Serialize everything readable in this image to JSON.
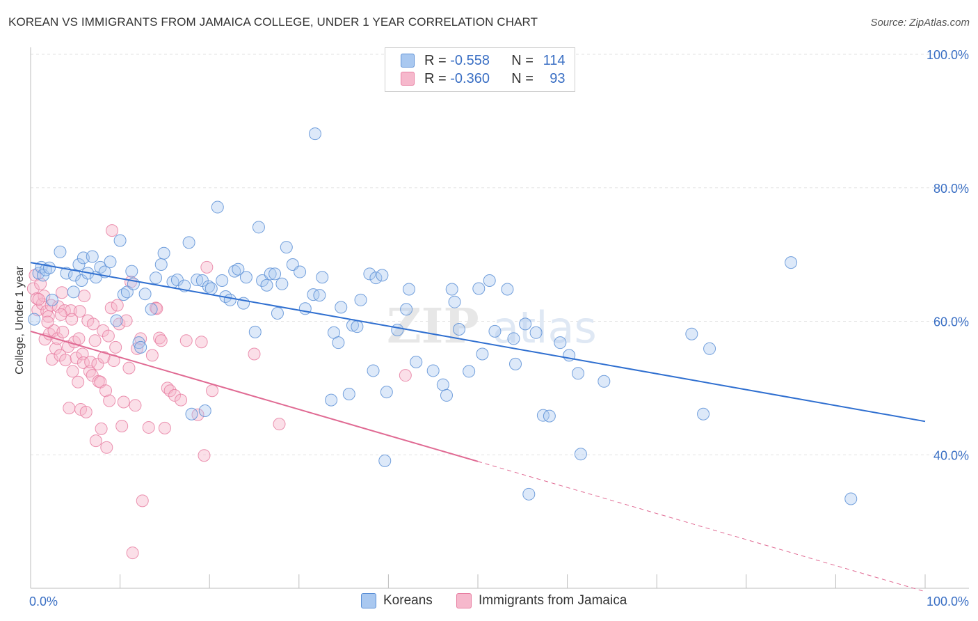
{
  "header": {
    "title": "KOREAN VS IMMIGRANTS FROM JAMAICA COLLEGE, UNDER 1 YEAR CORRELATION CHART",
    "source": "Source: ZipAtlas.com"
  },
  "watermark": {
    "zip": "ZIP",
    "atlas": "atlas"
  },
  "legend": {
    "items": [
      {
        "r_label": "R =",
        "r_value": "-0.558",
        "n_label": "N =",
        "n_value": "114"
      },
      {
        "r_label": "R =",
        "r_value": "-0.360",
        "n_label": "N =",
        "n_value": "93"
      }
    ]
  },
  "colors": {
    "koreans_fill": "#a9c8f0",
    "koreans_stroke": "#5b8fd6",
    "koreans_line": "#2f6fd0",
    "jamaica_fill": "#f6b8cc",
    "jamaica_stroke": "#e87fa2",
    "jamaica_line": "#e06a93",
    "tick_label": "#3a6fc4"
  },
  "chart_data": {
    "type": "scatter",
    "title": "KOREAN VS IMMIGRANTS FROM JAMAICA COLLEGE, UNDER 1 YEAR CORRELATION CHART",
    "xlabel": "",
    "ylabel": "College, Under 1 year",
    "xlim": [
      0,
      100
    ],
    "ylim": [
      20,
      100
    ],
    "x_tick_labels": [
      "0.0%",
      "100.0%"
    ],
    "y_ticks": [
      40,
      60,
      80,
      100
    ],
    "y_tick_labels": [
      "40.0%",
      "60.0%",
      "80.0%",
      "100.0%"
    ],
    "grid": true,
    "legend_position": "top-center",
    "series": [
      {
        "name": "Koreans",
        "r": -0.558,
        "n": 114,
        "trend": {
          "x": [
            0,
            100
          ],
          "y": [
            68.8,
            45.0
          ]
        },
        "points": [
          [
            0.4,
            60.3
          ],
          [
            0.9,
            67.2
          ],
          [
            1.2,
            68.1
          ],
          [
            1.4,
            66.9
          ],
          [
            1.7,
            67.7
          ],
          [
            2.1,
            68.0
          ],
          [
            2.4,
            63.2
          ],
          [
            3.3,
            70.4
          ],
          [
            4.0,
            67.2
          ],
          [
            4.8,
            64.4
          ],
          [
            4.9,
            66.9
          ],
          [
            5.4,
            68.5
          ],
          [
            5.7,
            66.1
          ],
          [
            5.9,
            69.5
          ],
          [
            6.4,
            67.2
          ],
          [
            6.9,
            69.7
          ],
          [
            7.3,
            66.6
          ],
          [
            7.8,
            68.1
          ],
          [
            8.3,
            67.4
          ],
          [
            8.9,
            68.9
          ],
          [
            9.6,
            60.1
          ],
          [
            10.0,
            72.1
          ],
          [
            10.4,
            64.0
          ],
          [
            10.8,
            64.4
          ],
          [
            11.3,
            67.5
          ],
          [
            11.5,
            65.6
          ],
          [
            12.1,
            56.8
          ],
          [
            12.3,
            56.1
          ],
          [
            12.8,
            64.1
          ],
          [
            13.5,
            61.8
          ],
          [
            14.0,
            66.5
          ],
          [
            14.6,
            68.5
          ],
          [
            14.9,
            70.2
          ],
          [
            15.9,
            65.9
          ],
          [
            16.4,
            66.2
          ],
          [
            17.2,
            65.3
          ],
          [
            17.7,
            71.8
          ],
          [
            18.0,
            46.1
          ],
          [
            18.6,
            66.2
          ],
          [
            19.2,
            66.1
          ],
          [
            19.5,
            46.6
          ],
          [
            19.9,
            65.2
          ],
          [
            20.2,
            64.9
          ],
          [
            20.9,
            77.1
          ],
          [
            21.4,
            66.1
          ],
          [
            21.8,
            63.7
          ],
          [
            22.3,
            63.2
          ],
          [
            22.8,
            67.5
          ],
          [
            23.2,
            67.8
          ],
          [
            23.8,
            62.7
          ],
          [
            24.1,
            66.6
          ],
          [
            25.1,
            58.4
          ],
          [
            25.5,
            74.1
          ],
          [
            25.9,
            66.1
          ],
          [
            26.4,
            65.4
          ],
          [
            26.8,
            67.1
          ],
          [
            27.3,
            67.1
          ],
          [
            27.6,
            61.2
          ],
          [
            28.1,
            65.6
          ],
          [
            28.6,
            71.1
          ],
          [
            29.3,
            68.5
          ],
          [
            30.1,
            67.4
          ],
          [
            30.7,
            61.9
          ],
          [
            31.6,
            64.0
          ],
          [
            31.8,
            88.1
          ],
          [
            32.3,
            63.9
          ],
          [
            32.6,
            66.6
          ],
          [
            33.6,
            48.2
          ],
          [
            33.9,
            58.3
          ],
          [
            34.4,
            56.8
          ],
          [
            34.7,
            62.1
          ],
          [
            35.6,
            49.1
          ],
          [
            36.0,
            59.4
          ],
          [
            36.5,
            59.2
          ],
          [
            36.9,
            63.2
          ],
          [
            37.9,
            67.1
          ],
          [
            38.3,
            52.6
          ],
          [
            38.6,
            66.5
          ],
          [
            39.3,
            66.9
          ],
          [
            39.6,
            39.1
          ],
          [
            39.8,
            49.4
          ],
          [
            41.0,
            58.7
          ],
          [
            42.0,
            61.8
          ],
          [
            42.3,
            64.8
          ],
          [
            43.1,
            53.9
          ],
          [
            45.0,
            52.6
          ],
          [
            46.1,
            50.5
          ],
          [
            46.5,
            48.9
          ],
          [
            47.1,
            64.8
          ],
          [
            47.4,
            62.9
          ],
          [
            47.9,
            58.8
          ],
          [
            49.0,
            52.5
          ],
          [
            50.1,
            64.9
          ],
          [
            50.5,
            55.1
          ],
          [
            51.3,
            66.1
          ],
          [
            51.9,
            58.5
          ],
          [
            53.3,
            64.8
          ],
          [
            54.0,
            57.4
          ],
          [
            54.2,
            53.6
          ],
          [
            55.3,
            59.6
          ],
          [
            55.7,
            34.1
          ],
          [
            56.5,
            58.3
          ],
          [
            57.3,
            45.9
          ],
          [
            58.0,
            45.8
          ],
          [
            59.2,
            56.8
          ],
          [
            60.2,
            54.9
          ],
          [
            61.2,
            52.2
          ],
          [
            61.5,
            40.1
          ],
          [
            64.1,
            51.0
          ],
          [
            73.9,
            58.1
          ],
          [
            75.2,
            46.1
          ],
          [
            75.9,
            55.9
          ],
          [
            85.0,
            68.8
          ],
          [
            91.7,
            33.4
          ]
        ]
      },
      {
        "name": "Immigrants from Jamaica",
        "r": -0.36,
        "n": 93,
        "trend": {
          "x": [
            0,
            50
          ],
          "y": [
            58.5,
            39.0
          ],
          "dashed_to": {
            "x": 100,
            "y": 19.5
          }
        },
        "points": [
          [
            0.3,
            64.9
          ],
          [
            0.5,
            66.9
          ],
          [
            0.7,
            63.4
          ],
          [
            0.8,
            61.7
          ],
          [
            1.1,
            65.6
          ],
          [
            1.3,
            62.6
          ],
          [
            1.5,
            63.8
          ],
          [
            1.6,
            57.3
          ],
          [
            1.8,
            61.5
          ],
          [
            2.0,
            60.7
          ],
          [
            2.1,
            58.1
          ],
          [
            2.3,
            62.4
          ],
          [
            2.4,
            54.3
          ],
          [
            2.6,
            58.6
          ],
          [
            2.8,
            55.9
          ],
          [
            3.0,
            57.4
          ],
          [
            3.1,
            62.2
          ],
          [
            3.3,
            54.9
          ],
          [
            3.5,
            64.3
          ],
          [
            3.6,
            58.4
          ],
          [
            3.8,
            61.6
          ],
          [
            3.9,
            54.2
          ],
          [
            4.2,
            56.2
          ],
          [
            4.3,
            47.0
          ],
          [
            4.5,
            61.6
          ],
          [
            4.6,
            60.3
          ],
          [
            4.7,
            52.5
          ],
          [
            4.9,
            56.9
          ],
          [
            5.1,
            54.5
          ],
          [
            5.3,
            50.9
          ],
          [
            5.4,
            57.4
          ],
          [
            5.5,
            61.5
          ],
          [
            5.6,
            46.8
          ],
          [
            5.8,
            55.1
          ],
          [
            5.9,
            53.8
          ],
          [
            6.0,
            63.8
          ],
          [
            6.2,
            46.4
          ],
          [
            6.4,
            60.1
          ],
          [
            6.6,
            52.5
          ],
          [
            6.7,
            53.9
          ],
          [
            6.9,
            51.9
          ],
          [
            7.0,
            59.6
          ],
          [
            7.2,
            57.1
          ],
          [
            7.3,
            42.1
          ],
          [
            7.5,
            53.6
          ],
          [
            7.6,
            51.0
          ],
          [
            7.8,
            50.9
          ],
          [
            7.9,
            43.9
          ],
          [
            8.1,
            58.6
          ],
          [
            8.2,
            54.6
          ],
          [
            8.4,
            49.6
          ],
          [
            8.5,
            41.1
          ],
          [
            8.7,
            57.8
          ],
          [
            8.8,
            48.1
          ],
          [
            9.0,
            62.0
          ],
          [
            9.1,
            73.6
          ],
          [
            9.3,
            54.1
          ],
          [
            9.5,
            56.1
          ],
          [
            9.7,
            62.4
          ],
          [
            9.9,
            59.6
          ],
          [
            10.2,
            44.3
          ],
          [
            10.4,
            47.9
          ],
          [
            10.7,
            60.1
          ],
          [
            11.0,
            53.0
          ],
          [
            11.2,
            65.9
          ],
          [
            11.4,
            25.3
          ],
          [
            11.7,
            47.4
          ],
          [
            11.9,
            55.9
          ],
          [
            12.3,
            57.4
          ],
          [
            12.5,
            33.1
          ],
          [
            13.2,
            44.1
          ],
          [
            13.6,
            54.9
          ],
          [
            14.0,
            62.0
          ],
          [
            14.1,
            61.9
          ],
          [
            14.4,
            57.5
          ],
          [
            14.6,
            57.1
          ],
          [
            15.0,
            44.0
          ],
          [
            15.3,
            50.0
          ],
          [
            15.6,
            49.6
          ],
          [
            16.1,
            48.9
          ],
          [
            16.8,
            48.2
          ],
          [
            17.4,
            57.1
          ],
          [
            18.7,
            46.0
          ],
          [
            19.1,
            56.9
          ],
          [
            19.4,
            39.9
          ],
          [
            19.7,
            68.1
          ],
          [
            20.3,
            49.6
          ],
          [
            25.0,
            55.1
          ],
          [
            27.8,
            44.6
          ],
          [
            41.9,
            51.9
          ],
          [
            0.9,
            63.3
          ],
          [
            1.9,
            59.9
          ],
          [
            3.4,
            61.0
          ]
        ]
      }
    ]
  },
  "bottom_legend": {
    "items": [
      {
        "label": "Koreans"
      },
      {
        "label": "Immigrants from Jamaica"
      }
    ]
  }
}
